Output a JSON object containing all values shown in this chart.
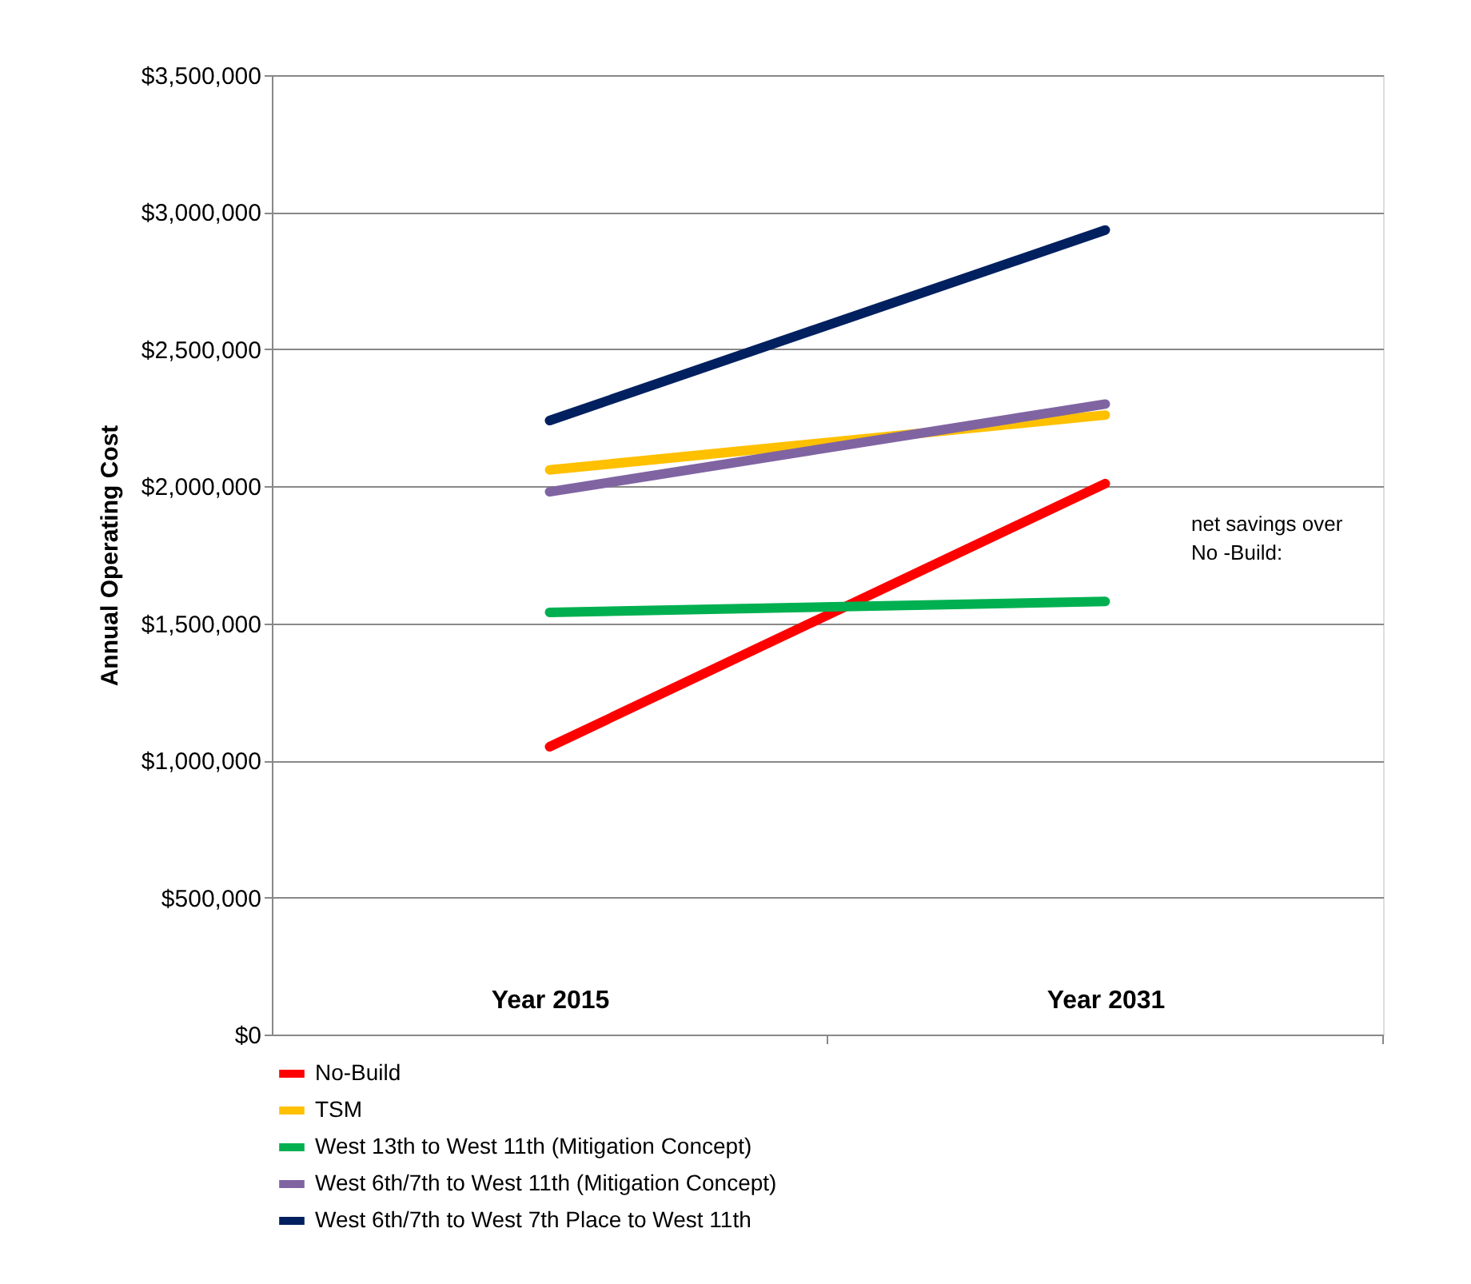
{
  "chart_data": {
    "type": "line",
    "ylabel": "Annual Operating Cost",
    "categories": [
      "Year 2015",
      "Year 2031"
    ],
    "series": [
      {
        "name": "No-Build",
        "color": "#ff0000",
        "values": [
          1050000,
          2010000
        ]
      },
      {
        "name": "TSM",
        "color": "#ffc000",
        "values": [
          2060000,
          2260000
        ]
      },
      {
        "name": "West 13th to West 11th (Mitigation Concept)",
        "color": "#00b050",
        "values": [
          1540000,
          1580000
        ]
      },
      {
        "name": "West 6th/7th to West 11th (Mitigation Concept)",
        "color": "#8064a2",
        "values": [
          1980000,
          2300000
        ]
      },
      {
        "name": "West 6th/7th to West 7th Place to West 11th",
        "color": "#002060",
        "values": [
          2240000,
          2935000
        ]
      }
    ],
    "ylim": [
      0,
      3500000
    ],
    "yticks": [
      {
        "value": 0,
        "label": "$0"
      },
      {
        "value": 500000,
        "label": "$500,000"
      },
      {
        "value": 1000000,
        "label": "$1,000,000"
      },
      {
        "value": 1500000,
        "label": "$1,500,000"
      },
      {
        "value": 2000000,
        "label": "$2,000,000"
      },
      {
        "value": 2500000,
        "label": "$2,500,000"
      },
      {
        "value": 3000000,
        "label": "$3,000,000"
      },
      {
        "value": 3500000,
        "label": "$3,500,000"
      }
    ],
    "grid": "y",
    "legend": "bottom",
    "marker": "none",
    "line_style": "solid",
    "annotations": [
      "net savings over No -Build:"
    ]
  }
}
